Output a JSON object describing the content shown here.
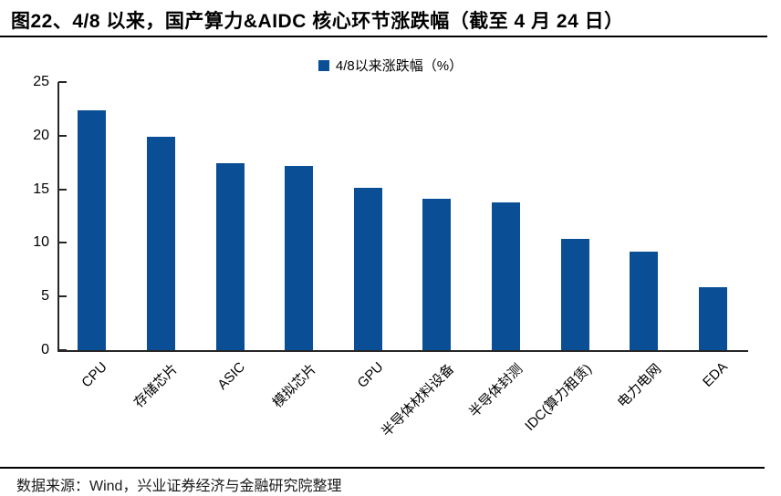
{
  "title": "图22、4/8 以来，国产算力&AIDC 核心环节涨跌幅（截至 4 月 24 日）",
  "footer": "数据来源：Wind，兴业证券经济与金融研究院整理",
  "chart_data": {
    "type": "bar",
    "title": "图22、4/8 以来，国产算力&AIDC 核心环节涨跌幅（截至 4 月 24 日）",
    "legend": "4/8以来涨跌幅（%）",
    "legend_position": "top-center",
    "categories": [
      "CPU",
      "存储芯片",
      "ASIC",
      "模拟芯片",
      "GPU",
      "半导体材料设备",
      "半导体封测",
      "IDC(算力租赁)",
      "电力电网",
      "EDA"
    ],
    "values": [
      22.4,
      19.9,
      17.4,
      17.2,
      15.1,
      14.1,
      13.8,
      10.4,
      9.2,
      5.9
    ],
    "xlabel": "",
    "ylabel": "",
    "ylim": [
      0,
      25
    ],
    "yticks": [
      0,
      5,
      10,
      15,
      20,
      25
    ],
    "grid": false,
    "bar_color": "#0A4F96",
    "axis_color": "#262626"
  }
}
